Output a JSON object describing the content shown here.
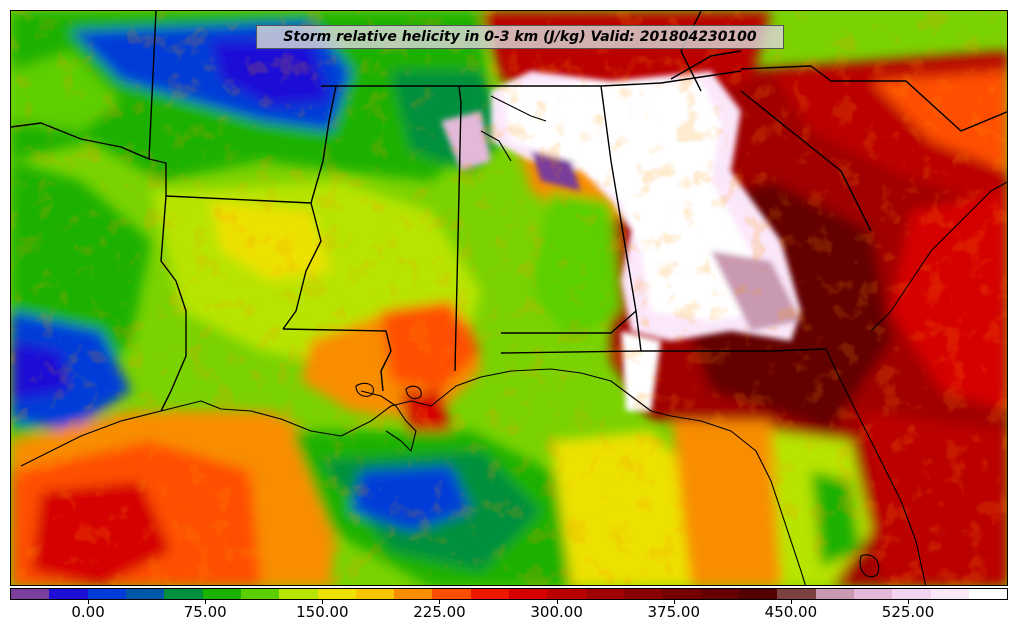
{
  "title": "Storm relative helicity in 0-3 km (J/kg) Valid: 201804230100",
  "colorbar": {
    "colors": [
      "#7a3e9b",
      "#1e0fd6",
      "#003cd8",
      "#0056a8",
      "#008f3c",
      "#1bb100",
      "#5ccf00",
      "#b7e400",
      "#ece100",
      "#f8c400",
      "#f88d00",
      "#fe4f00",
      "#f01700",
      "#d50000",
      "#bb0000",
      "#a00000",
      "#8a0000",
      "#760000",
      "#640000",
      "#520000",
      "#7d4040",
      "#c999b2",
      "#e3b8d8",
      "#f3d4f0",
      "#fbe7fa",
      "#ffffff"
    ],
    "tick_values": [
      -50,
      0,
      75,
      150,
      225,
      300,
      375,
      450,
      525
    ],
    "labels": [
      "0.00",
      "75.00",
      "150.00",
      "225.00",
      "300.00",
      "375.00",
      "450.00",
      "525.00"
    ],
    "label_values": [
      0,
      75,
      150,
      225,
      300,
      375,
      450,
      525
    ],
    "range": [
      -50,
      589
    ]
  },
  "map": {
    "region": "U.S. Gulf Coast and Southeast",
    "valid_time": "201804230100",
    "field_units": "J/kg"
  }
}
